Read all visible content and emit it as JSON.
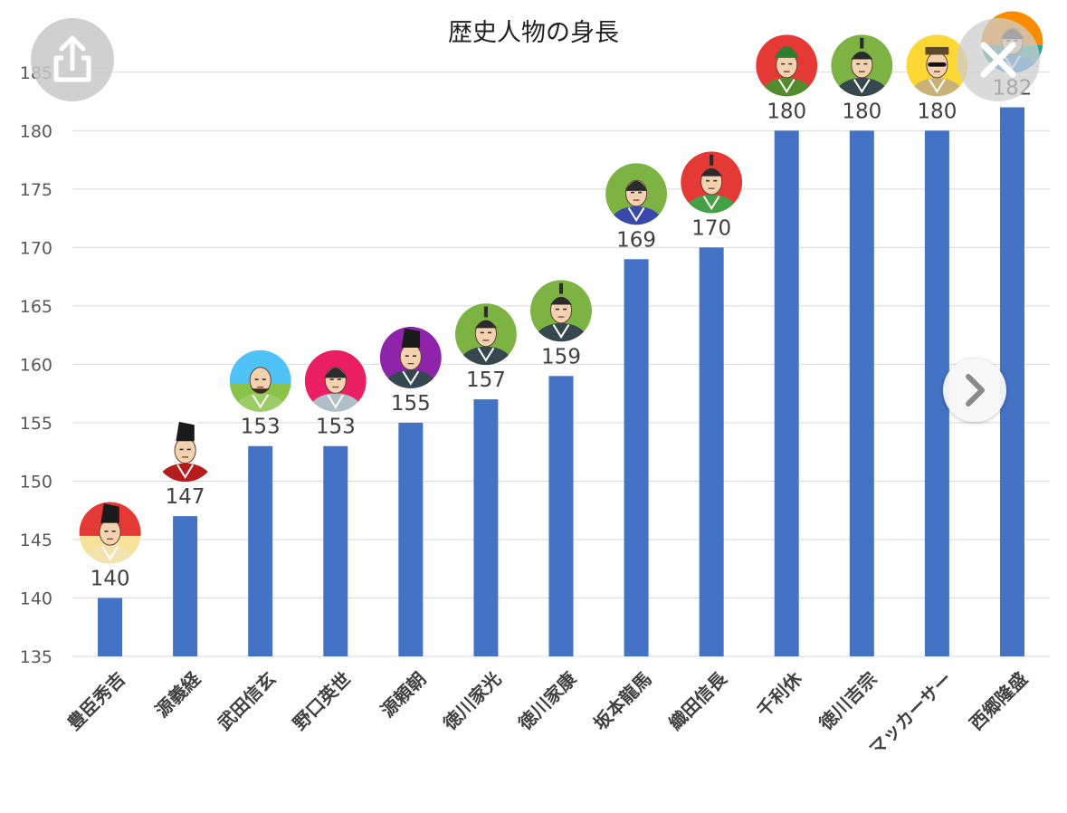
{
  "chart_data": {
    "type": "bar",
    "title": "歴史人物の身長",
    "categories": [
      "豊臣秀吉",
      "源義経",
      "武田信玄",
      "野口英世",
      "源頼朝",
      "徳川家光",
      "徳川家康",
      "坂本龍馬",
      "織田信長",
      "千利休",
      "徳川吉宗",
      "マッカーサー",
      "西郷隆盛"
    ],
    "values": [
      140,
      147,
      153,
      153,
      155,
      157,
      159,
      169,
      170,
      180,
      180,
      180,
      182
    ],
    "ylim": [
      135,
      187
    ],
    "yticks": [
      135,
      140,
      145,
      150,
      155,
      160,
      165,
      170,
      175,
      180,
      185
    ],
    "grid": true,
    "bar_color": "#4472c4",
    "portraits": [
      {
        "bg": "#e53935",
        "accent": "#f7e29a",
        "robe": "#f3e3b0",
        "hat": "black-eboshi"
      },
      {
        "bg": "#ffffff",
        "accent": "#ffffff",
        "robe": "#b71c1c",
        "hat": "black-eboshi"
      },
      {
        "bg": "#4fc3f7",
        "accent": "#8bc34a",
        "robe": "#9ccc65",
        "hat": "bald"
      },
      {
        "bg": "#e91e63",
        "accent": "#e91e63",
        "robe": "#b0bec5",
        "hat": "hair"
      },
      {
        "bg": "#8e24aa",
        "accent": "#8e24aa",
        "robe": "#37474f",
        "hat": "black-eboshi"
      },
      {
        "bg": "#7cb342",
        "accent": "#7cb342",
        "robe": "#37474f",
        "hat": "topknot"
      },
      {
        "bg": "#7cb342",
        "accent": "#7cb342",
        "robe": "#37474f",
        "hat": "topknot"
      },
      {
        "bg": "#7cb342",
        "accent": "#7cb342",
        "robe": "#3949ab",
        "hat": "hair"
      },
      {
        "bg": "#e53935",
        "accent": "#e53935",
        "robe": "#43a047",
        "hat": "topknot"
      },
      {
        "bg": "#e53935",
        "accent": "#e53935",
        "robe": "#558b2f",
        "hat": "green-hood"
      },
      {
        "bg": "#7cb342",
        "accent": "#7cb342",
        "robe": "#37474f",
        "hat": "topknot"
      },
      {
        "bg": "#fdd835",
        "accent": "#fdd835",
        "robe": "#c9b27a",
        "hat": "military-cap"
      },
      {
        "bg": "#fb8c00",
        "accent": "#26a69a",
        "robe": "#1e88e5",
        "hat": "hair"
      }
    ]
  },
  "overlay": {
    "share_icon": "share-icon",
    "close_icon": "close-icon",
    "next_icon": "chevron-right-icon"
  }
}
